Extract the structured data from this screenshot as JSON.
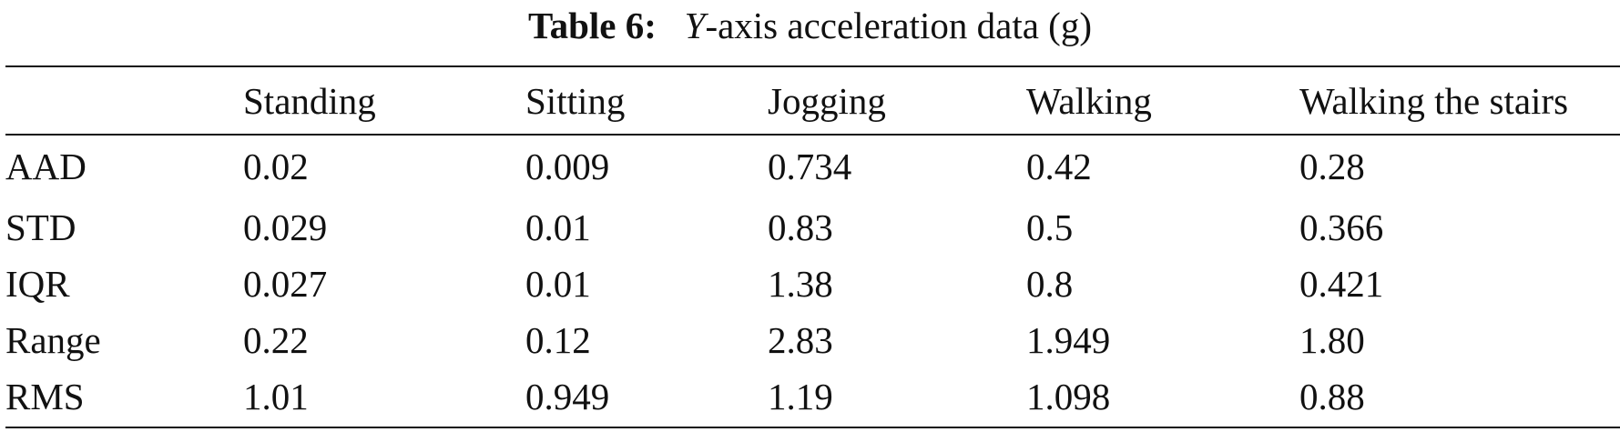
{
  "caption": {
    "label": "Table 6:",
    "variable": "Y",
    "text": "-axis acceleration data (g)"
  },
  "table": {
    "corner": "",
    "columns": [
      "Standing",
      "Sitting",
      "Jogging",
      "Walking",
      "Walking the stairs"
    ],
    "rows": [
      {
        "label": "AAD",
        "values": [
          "0.02",
          "0.009",
          "0.734",
          "0.42",
          "0.28"
        ]
      },
      {
        "label": "STD",
        "values": [
          "0.029",
          "0.01",
          "0.83",
          "0.5",
          "0.366"
        ]
      },
      {
        "label": "IQR",
        "values": [
          "0.027",
          "0.01",
          "1.38",
          "0.8",
          "0.421"
        ]
      },
      {
        "label": "Range",
        "values": [
          "0.22",
          "0.12",
          "2.83",
          "1.949",
          "1.80"
        ]
      },
      {
        "label": "RMS",
        "values": [
          "1.01",
          "0.949",
          "1.19",
          "1.098",
          "0.88"
        ]
      }
    ]
  }
}
